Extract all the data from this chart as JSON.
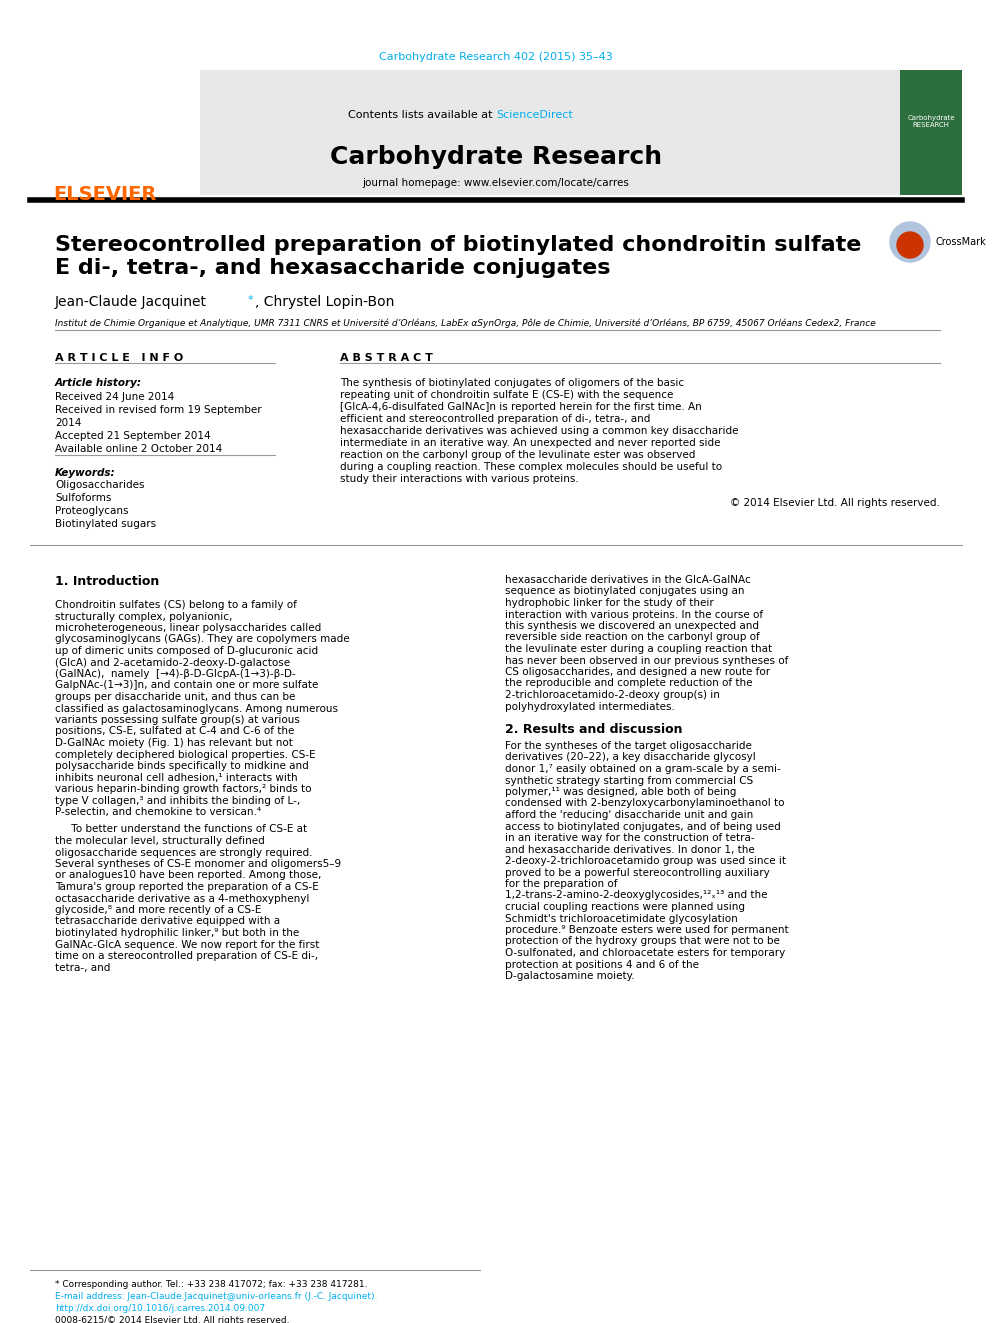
{
  "bg_color": "#ffffff",
  "journal_ref": "Carbohydrate Research 402 (2015) 35–43",
  "journal_ref_color": "#00aeef",
  "header_bg": "#e8e8e8",
  "header_journal": "Carbohydrate Research",
  "header_subtitle": "journal homepage: www.elsevier.com/locate/carres",
  "header_contents": "Contents lists available at ",
  "header_sciencedirect": "ScienceDirect",
  "header_sd_color": "#00aeef",
  "elsevier_color": "#ff6600",
  "title_line1": "Stereocontrolled preparation of biotinylated chondroitin sulfate",
  "title_line2": "E di-, tetra-, and hexasaccharide conjugates",
  "authors": "Jean-Claude Jacquinet*, Chrystel Lopin-Bon",
  "affiliation": "Institut de Chimie Organique et Analytique, UMR 7311 CNRS et Université d’Orléans, LabEx αSynOrga, Pôle de Chimie, Université d’Orléans, BP 6759, 45067 Orléans Cedex2, France",
  "article_info_header": "A R T I C L E   I N F O",
  "abstract_header": "A B S T R A C T",
  "article_history_label": "Article history:",
  "dates": [
    "Received 24 June 2014",
    "Received in revised form 19 September",
    "2014",
    "Accepted 21 September 2014",
    "Available online 2 October 2014"
  ],
  "keywords_label": "Keywords:",
  "keywords": [
    "Oligosaccharides",
    "Sulfoforms",
    "Proteoglycans",
    "Biotinylated sugars"
  ],
  "abstract_text": "The synthesis of biotinylated conjugates of oligomers of the basic repeating unit of chondroitin sulfate E (CS-E) with the sequence [GlcA-4,6-disulfated GalNAc]n is reported herein for the first time. An efficient and stereocontrolled preparation of di-, tetra-, and hexasaccharide derivatives was achieved using a common key disaccharide intermediate in an iterative way. An unexpected and never reported side reaction on the carbonyl group of the levulinate ester was observed during a coupling reaction. These complex molecules should be useful to study their interactions with various proteins.",
  "abstract_rights": "© 2014 Elsevier Ltd. All rights reserved.",
  "intro_header": "1. Introduction",
  "intro_col1": "Chondroitin sulfates (CS) belong to a family of structurally complex, polyanionic, microheterogeneous, linear polysaccharides called glycosaminoglycans (GAGs). They are copolymers made up of dimeric units composed of D-glucuronic acid (GlcA) and 2-acetamido-2-deoxy-D-galactose  (GalNAc),  namely  [→4)-β-D-GlcpA-(1→3)-β-D-GalpNAc-(1→3)]n, and contain one or more sulfate groups per disaccharide unit, and thus can be classified as galactosaminoglycans. Among numerous variants possessing sulfate group(s) at various positions, CS-E, sulfated at C-4 and C-6 of the D-GalNAc moiety (Fig. 1) has relevant but not completely deciphered biological properties. CS-E polysaccharide binds specifically to midkine and inhibits neuronal cell adhesion,¹ interacts with various heparin-binding growth factors,² binds to type V collagen,³ and inhibits the binding of L-, P-selectin, and chemokine to versican.⁴",
  "intro_col2": "hexasaccharide derivatives in the GlcA-GalNAc sequence as biotinylated conjugates using an hydrophobic linker for the study of their interaction with various proteins. In the course of this synthesis we discovered an unexpected and reversible side reaction on the carbonyl group of the levulinate ester during a coupling reaction that has never been observed in our previous syntheses of CS oligosaccharides, and designed a new route for the reproducible and complete reduction of the 2-trichloroacetamido-2-deoxy group(s) in polyhydroxylated intermediates.",
  "intro_col2b": "     To better understand the functions of CS-E at the molecular level, structurally defined oligosaccharide sequences are strongly required. Several syntheses of CS-E monomer and oligomers5–9 or analogues10 have been reported. Among those, Tamura's group reported the preparation of a CS-E octasaccharide derivative as a 4-methoxyphenyl glycoside,⁸ and more recently of a CS-E tetrasaccharide derivative equipped with a biotinylated hydrophilic linker,⁹ but both in the GalNAc-GlcA sequence. We now report for the first time on a stereocontrolled preparation of CS-E di-, tetra-, and",
  "results_header": "2. Results and discussion",
  "results_col2": "For the syntheses of the target oligosaccharide derivatives (20–22), a key disaccharide glycosyl donor 1,⁷ easily obtained on a gram-scale by a semi-synthetic strategy starting from commercial CS polymer,¹¹ was designed, able both of being condensed with 2-benzyloxycarbonylaminoethanol to afford the 'reducing' disaccharide unit and gain access to biotinylated conjugates, and of being used in an iterative way for the construction of tetra- and hexasaccharide derivatives. In donor 1, the 2-deoxy-2-trichloroacetamido group was used since it proved to be a powerful stereocontrolling auxiliary for the preparation of 1,2-trans-2-amino-2-deoxyglycosides,¹²ₓ¹³ and the crucial coupling reactions were planned using Schmidt's trichloroacetimidate glycosylation procedure.⁹ Benzoate esters were used for permanent protection of the hydroxy groups that were not to be O-sulfonated, and chloroacetate esters for temporary protection at positions 4 and 6 of the D-galactosamine moiety.",
  "footnote1": "* Corresponding author. Tel.: +33 238 417072; fax: +33 238 417281.",
  "footnote2": "E-mail address: Jean-Claude.Jacquinet@univ-orleans.fr (J.-C. Jacquinet).",
  "footnote3": "http://dx.doi.org/10.1016/j.carres.2014.09.007",
  "footnote4": "0008-6215/© 2014 Elsevier Ltd. All rights reserved."
}
